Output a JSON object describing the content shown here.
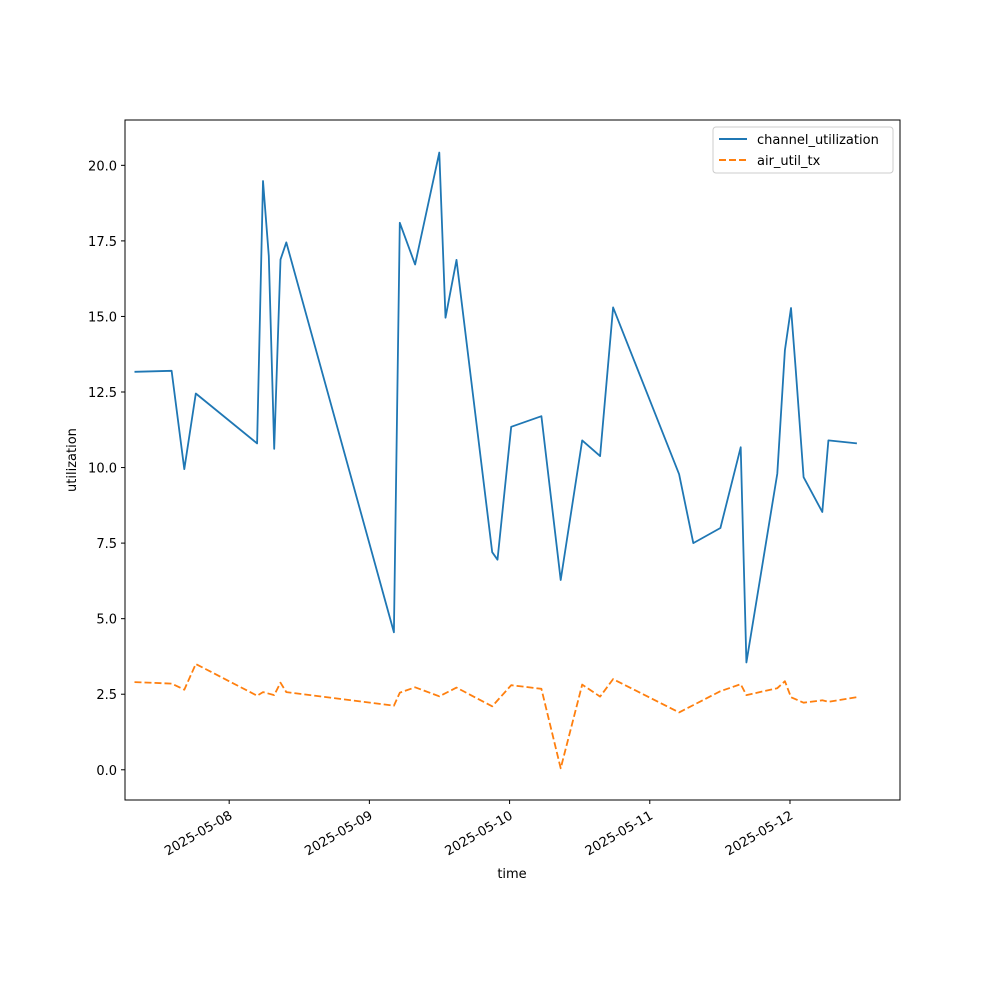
{
  "chart_data": {
    "type": "line",
    "xlabel": "time",
    "ylabel": "utilization",
    "x_tick_labels": [
      "2025-05-08",
      "2025-05-09",
      "2025-05-10",
      "2025-05-11",
      "2025-05-12"
    ],
    "y_tick_labels": [
      "0.0",
      "2.5",
      "5.0",
      "7.5",
      "10.0",
      "12.5",
      "15.0",
      "17.5",
      "20.0"
    ],
    "ylim": [
      -1.0,
      21.5
    ],
    "xlim": [
      "2025-05-07 06:10",
      "2025-05-12 18:50"
    ],
    "grid": false,
    "legend_position": "top-right",
    "series": [
      {
        "name": "channel_utilization",
        "color": "#1f77b4",
        "line_style": "solid",
        "points": [
          [
            "2025-05-07 07:48",
            13.17
          ],
          [
            "2025-05-07 14:09",
            13.2
          ],
          [
            "2025-05-07 16:19",
            9.95
          ],
          [
            "2025-05-07 18:17",
            12.45
          ],
          [
            "2025-05-08 04:47",
            10.8
          ],
          [
            "2025-05-08 05:47",
            19.48
          ],
          [
            "2025-05-08 06:47",
            17.0
          ],
          [
            "2025-05-08 07:42",
            10.62
          ],
          [
            "2025-05-08 08:47",
            16.88
          ],
          [
            "2025-05-08 09:47",
            17.45
          ],
          [
            "2025-05-09 04:12",
            4.55
          ],
          [
            "2025-05-09 05:12",
            18.1
          ],
          [
            "2025-05-09 07:50",
            16.72
          ],
          [
            "2025-05-09 11:58",
            20.42
          ],
          [
            "2025-05-09 13:02",
            14.96
          ],
          [
            "2025-05-09 14:55",
            16.87
          ],
          [
            "2025-05-09 21:02",
            7.2
          ],
          [
            "2025-05-09 21:56",
            6.95
          ],
          [
            "2025-05-10 00:17",
            11.35
          ],
          [
            "2025-05-10 05:27",
            11.7
          ],
          [
            "2025-05-10 08:45",
            6.28
          ],
          [
            "2025-05-10 12:26",
            10.9
          ],
          [
            "2025-05-10 15:30",
            10.38
          ],
          [
            "2025-05-10 17:43",
            15.3
          ],
          [
            "2025-05-11 05:01",
            9.78
          ],
          [
            "2025-05-11 07:27",
            7.5
          ],
          [
            "2025-05-11 12:05",
            8.0
          ],
          [
            "2025-05-11 15:34",
            10.67
          ],
          [
            "2025-05-11 16:32",
            3.55
          ],
          [
            "2025-05-11 21:50",
            9.8
          ],
          [
            "2025-05-11 23:08",
            13.88
          ],
          [
            "2025-05-12 00:10",
            15.28
          ],
          [
            "2025-05-12 00:58",
            13.3
          ],
          [
            "2025-05-12 02:20",
            9.68
          ],
          [
            "2025-05-12 05:32",
            8.53
          ],
          [
            "2025-05-12 06:35",
            10.9
          ],
          [
            "2025-05-12 11:27",
            10.8
          ]
        ]
      },
      {
        "name": "air_util_tx",
        "color": "#ff7f0e",
        "line_style": "dashed",
        "points": [
          [
            "2025-05-07 07:48",
            2.9
          ],
          [
            "2025-05-07 14:09",
            2.85
          ],
          [
            "2025-05-07 16:19",
            2.65
          ],
          [
            "2025-05-07 18:17",
            3.5
          ],
          [
            "2025-05-08 04:47",
            2.45
          ],
          [
            "2025-05-08 05:47",
            2.57
          ],
          [
            "2025-05-08 07:42",
            2.47
          ],
          [
            "2025-05-08 08:47",
            2.88
          ],
          [
            "2025-05-08 09:47",
            2.57
          ],
          [
            "2025-05-09 04:12",
            2.12
          ],
          [
            "2025-05-09 05:12",
            2.55
          ],
          [
            "2025-05-09 07:50",
            2.73
          ],
          [
            "2025-05-09 11:58",
            2.43
          ],
          [
            "2025-05-09 14:55",
            2.72
          ],
          [
            "2025-05-09 21:02",
            2.1
          ],
          [
            "2025-05-10 00:17",
            2.8
          ],
          [
            "2025-05-10 05:27",
            2.68
          ],
          [
            "2025-05-10 08:45",
            0.05
          ],
          [
            "2025-05-10 12:26",
            2.82
          ],
          [
            "2025-05-10 15:30",
            2.42
          ],
          [
            "2025-05-10 17:43",
            3.0
          ],
          [
            "2025-05-11 05:01",
            1.9
          ],
          [
            "2025-05-11 12:05",
            2.6
          ],
          [
            "2025-05-11 15:34",
            2.83
          ],
          [
            "2025-05-11 16:32",
            2.47
          ],
          [
            "2025-05-11 21:50",
            2.7
          ],
          [
            "2025-05-11 23:08",
            2.93
          ],
          [
            "2025-05-12 00:10",
            2.4
          ],
          [
            "2025-05-12 02:20",
            2.22
          ],
          [
            "2025-05-12 05:32",
            2.3
          ],
          [
            "2025-05-12 06:35",
            2.25
          ],
          [
            "2025-05-12 11:27",
            2.4
          ]
        ]
      }
    ]
  }
}
